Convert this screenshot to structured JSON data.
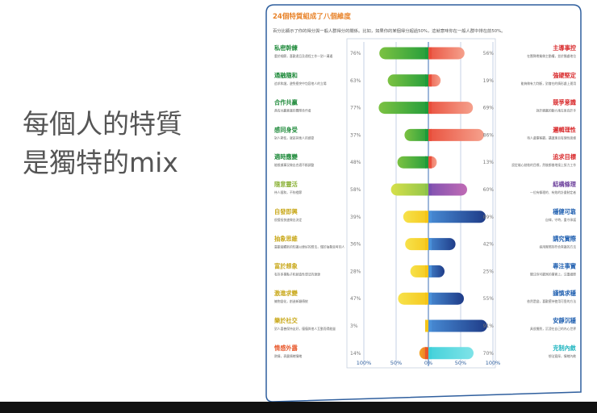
{
  "headline": {
    "line1": "每個人的特質",
    "line2": "是獨特的mix"
  },
  "chart_data": {
    "type": "bar",
    "title": "24個特質組成了八個維度",
    "subtitle": "百分比顯示了你的得分與一般人群得分的關係。比如，如果你的某個得分超過50%，這就意味你在一般人群中排在前50%。",
    "xticks": [
      "100%",
      "50%",
      "0%",
      "50%",
      "100%"
    ],
    "xlim": [
      -100,
      100
    ],
    "rows": [
      {
        "left_name": "私密幹練",
        "left_desc": "重於細節，喜歡遠且及遠程工作一對一溝通",
        "left_pct": "76%",
        "left_value": 76,
        "right_name": "主導事控",
        "right_desc": "在團隊帶業做主動權，並於獨處地位",
        "right_pct": "56%",
        "right_value": 56,
        "left_colors": [
          "#7cc242",
          "#1e9b3b"
        ],
        "right_colors": [
          "#e94e3b",
          "#f5a08c"
        ],
        "left_label_color": "#1e8a3a",
        "right_label_color": "#d8282a"
      },
      {
        "left_name": "通融隨和",
        "left_desc": "追求和諧，避免衝突中包容他人的立場",
        "left_pct": "63%",
        "left_value": 63,
        "right_name": "強硬堅定",
        "right_desc": "能夠做有力判斷，對會在的情形處上運用",
        "right_pct": "19%",
        "right_value": 19,
        "left_colors": [
          "#7cc242",
          "#1e9b3b"
        ],
        "right_colors": [
          "#e94e3b",
          "#f5a08c"
        ],
        "left_label_color": "#1e8a3a",
        "right_label_color": "#d8282a"
      },
      {
        "left_name": "合作共贏",
        "left_desc": "具有共贏意識的團隊合作者",
        "left_pct": "77%",
        "left_value": 77,
        "right_name": "競爭意識",
        "right_desc": "對於勝贏的動力來在來自於手",
        "right_pct": "69%",
        "right_value": 69,
        "left_colors": [
          "#7cc242",
          "#1e9b3b"
        ],
        "right_colors": [
          "#e94e3b",
          "#f5a08c"
        ],
        "left_label_color": "#1e8a3a",
        "right_label_color": "#d8282a"
      },
      {
        "left_name": "感同身受",
        "left_desc": "對人熱忱，就該其他人的感受",
        "left_pct": "37%",
        "left_value": 37,
        "right_name": "邏輯理性",
        "right_desc": "待人處事客觀，講道理且有理性思維",
        "right_pct": "86%",
        "right_value": 86,
        "left_colors": [
          "#7cc242",
          "#1e9b3b"
        ],
        "right_colors": [
          "#e94e3b",
          "#f5a08c"
        ],
        "left_label_color": "#1e8a3a",
        "right_label_color": "#d8282a"
      },
      {
        "left_name": "適時應變",
        "left_desc": "能根據事況做出合適不斷調整",
        "left_pct": "48%",
        "left_value": 48,
        "right_name": "追求目標",
        "right_desc": "設定雄心勃勃的目標，然後都會地接上努力工作",
        "right_pct": "13%",
        "right_value": 13,
        "left_colors": [
          "#7cc242",
          "#1e9b3b"
        ],
        "right_colors": [
          "#e94e3b",
          "#f5a08c"
        ],
        "left_label_color": "#1e8a3a",
        "right_label_color": "#d8282a"
      },
      {
        "left_name": "隨意靈活",
        "left_desc": "待人隨和，不拘禮節",
        "left_pct": "58%",
        "left_value": 58,
        "right_name": "結構條理",
        "right_desc": "一位有條理的、有效的計畫制定者",
        "right_pct": "60%",
        "right_value": 60,
        "left_colors": [
          "#d6e04a",
          "#8bc34a"
        ],
        "right_colors": [
          "#7b4fb0",
          "#c06bb5"
        ],
        "left_label_color": "#8db33a",
        "right_label_color": "#6a3d9a"
      },
      {
        "left_name": "自發即興",
        "left_desc": "很擅長快速做出決定",
        "left_pct": "39%",
        "left_value": 39,
        "right_name": "穩健可靠",
        "right_desc": "自律，守時，重守承諾",
        "right_pct": "89%",
        "right_value": 89,
        "left_colors": [
          "#f7e24b",
          "#f5c518"
        ],
        "right_colors": [
          "#4a90d9",
          "#1f3c88"
        ],
        "left_label_color": "#c9a81a",
        "right_label_color": "#1f5fb0"
      },
      {
        "left_name": "抽象思維",
        "left_desc": "喜歡接觸新的知識以便好的想法，懂於抽象思考的人",
        "left_pct": "36%",
        "left_value": 36,
        "right_name": "講究實際",
        "right_desc": "採用實際的符合常識的方法",
        "right_pct": "42%",
        "right_value": 42,
        "left_colors": [
          "#f7e24b",
          "#f5c518"
        ],
        "right_colors": [
          "#4a90d9",
          "#1f3c88"
        ],
        "left_label_color": "#c9a81a",
        "right_label_color": "#1f5fb0"
      },
      {
        "left_name": "富於想象",
        "left_desc": "有許多事點子和創造性想法的源源",
        "left_pct": "28%",
        "left_value": 28,
        "right_name": "專注事實",
        "right_desc": "關注你可觀測的事實上，注重細節",
        "right_pct": "25%",
        "right_value": 25,
        "left_colors": [
          "#f7e24b",
          "#f5c518"
        ],
        "right_colors": [
          "#4a90d9",
          "#1f3c88"
        ],
        "left_label_color": "#c9a81a",
        "right_label_color": "#1f5fb0"
      },
      {
        "left_name": "激進求變",
        "left_desc": "擁抱變化，創造新穎傳統",
        "left_pct": "47%",
        "left_value": 47,
        "right_name": "謹慎求穩",
        "right_desc": "依然是變，喜歡堅持使用可靠的方法",
        "right_pct": "55%",
        "right_value": 55,
        "left_colors": [
          "#f7e24b",
          "#f5c518"
        ],
        "right_colors": [
          "#4a90d9",
          "#1f3c88"
        ],
        "left_label_color": "#c9a81a",
        "right_label_color": "#1f5fb0"
      },
      {
        "left_name": "樂於社交",
        "left_desc": "對人喜善保持友好，僅僅與他人互動而得能量",
        "left_pct": "3%",
        "left_value": 3,
        "right_name": "安靜沉穩",
        "right_desc": "具很獨到，沉浸在自己的內心世界",
        "right_pct": "91%",
        "right_value": 91,
        "left_colors": [
          "#f7e24b",
          "#f5c518"
        ],
        "right_colors": [
          "#4a90d9",
          "#1f3c88"
        ],
        "left_label_color": "#c9a81a",
        "right_label_color": "#1f5fb0"
      },
      {
        "left_name": "情感外露",
        "left_desc": "熱情，表露情緒情緒",
        "left_pct": "14%",
        "left_value": 14,
        "right_name": "克制內斂",
        "right_desc": "想法寬厚，情緒內斂",
        "right_pct": "70%",
        "right_value": 70,
        "left_colors": [
          "#f5a623",
          "#e8572a"
        ],
        "right_colors": [
          "#3fd0d9",
          "#7fe3e8"
        ],
        "left_label_color": "#e8572a",
        "right_label_color": "#1fb5c0"
      }
    ]
  }
}
